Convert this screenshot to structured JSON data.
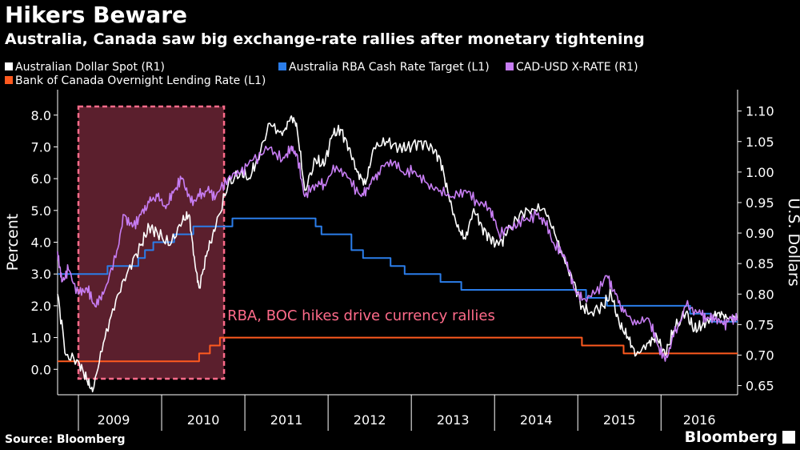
{
  "header": {
    "title": "Hikers Beware",
    "subtitle": "Australia, Canada saw big exchange-rate rallies after monetary tightening"
  },
  "footer": {
    "source": "Source: Bloomberg",
    "brand": "Bloomberg"
  },
  "colors": {
    "aud": "#ffffff",
    "rba": "#2b7de9",
    "cad": "#c77df3",
    "boc": "#ff5a1f",
    "highlight_fill": "#7a2a3c",
    "highlight_border": "#ff6b8a",
    "annotation": "#ff6b8a",
    "axis": "#ffffff",
    "grid": "#555555"
  },
  "chart_data": {
    "type": "line",
    "title": "Hikers Beware",
    "subtitle": "Australia, Canada saw big exchange-rate rallies after monetary tightening",
    "left_axis": {
      "label": "Percent",
      "range": [
        -0.8,
        8.8
      ],
      "ticks": [
        "0.0",
        "1.0",
        "2.0",
        "3.0",
        "4.0",
        "5.0",
        "6.0",
        "7.0",
        "8.0"
      ]
    },
    "right_axis": {
      "label": "U.S. Dollars",
      "range": [
        0.635,
        1.135
      ],
      "ticks": [
        "0.65",
        "0.70",
        "0.75",
        "0.80",
        "0.85",
        "0.90",
        "0.95",
        "1.00",
        "1.05",
        "1.10"
      ]
    },
    "x_axis": {
      "range": [
        2008.75,
        2016.92
      ],
      "ticks": [
        "2009",
        "2010",
        "2011",
        "2012",
        "2013",
        "2014",
        "2015",
        "2016"
      ]
    },
    "legend_placement": "top",
    "grid": false,
    "series": [
      {
        "key": "aud",
        "name": "Australian Dollar Spot (R1)",
        "axis": "right",
        "points": [
          [
            2008.75,
            0.8
          ],
          [
            2008.85,
            0.7
          ],
          [
            2009.0,
            0.69
          ],
          [
            2009.1,
            0.66
          ],
          [
            2009.17,
            0.64
          ],
          [
            2009.3,
            0.72
          ],
          [
            2009.45,
            0.79
          ],
          [
            2009.6,
            0.84
          ],
          [
            2009.75,
            0.88
          ],
          [
            2009.85,
            0.91
          ],
          [
            2009.95,
            0.9
          ],
          [
            2010.1,
            0.88
          ],
          [
            2010.25,
            0.92
          ],
          [
            2010.33,
            0.93
          ],
          [
            2010.4,
            0.85
          ],
          [
            2010.45,
            0.81
          ],
          [
            2010.55,
            0.87
          ],
          [
            2010.65,
            0.91
          ],
          [
            2010.8,
            0.98
          ],
          [
            2010.95,
            1.0
          ],
          [
            2011.05,
            0.99
          ],
          [
            2011.15,
            1.02
          ],
          [
            2011.3,
            1.08
          ],
          [
            2011.45,
            1.06
          ],
          [
            2011.55,
            1.09
          ],
          [
            2011.62,
            1.08
          ],
          [
            2011.72,
            0.97
          ],
          [
            2011.85,
            1.02
          ],
          [
            2011.95,
            1.01
          ],
          [
            2012.05,
            1.06
          ],
          [
            2012.15,
            1.07
          ],
          [
            2012.25,
            1.04
          ],
          [
            2012.35,
            1.0
          ],
          [
            2012.45,
            0.98
          ],
          [
            2012.55,
            1.04
          ],
          [
            2012.7,
            1.05
          ],
          [
            2012.85,
            1.04
          ],
          [
            2012.95,
            1.04
          ],
          [
            2013.1,
            1.05
          ],
          [
            2013.25,
            1.04
          ],
          [
            2013.35,
            1.02
          ],
          [
            2013.45,
            0.96
          ],
          [
            2013.55,
            0.91
          ],
          [
            2013.65,
            0.89
          ],
          [
            2013.75,
            0.94
          ],
          [
            2013.85,
            0.91
          ],
          [
            2013.95,
            0.89
          ],
          [
            2014.05,
            0.88
          ],
          [
            2014.15,
            0.9
          ],
          [
            2014.3,
            0.93
          ],
          [
            2014.45,
            0.94
          ],
          [
            2014.6,
            0.94
          ],
          [
            2014.72,
            0.9
          ],
          [
            2014.85,
            0.85
          ],
          [
            2014.95,
            0.82
          ],
          [
            2015.05,
            0.78
          ],
          [
            2015.15,
            0.77
          ],
          [
            2015.3,
            0.78
          ],
          [
            2015.4,
            0.8
          ],
          [
            2015.5,
            0.75
          ],
          [
            2015.6,
            0.73
          ],
          [
            2015.7,
            0.7
          ],
          [
            2015.85,
            0.72
          ],
          [
            2015.95,
            0.73
          ],
          [
            2016.05,
            0.7
          ],
          [
            2016.15,
            0.74
          ],
          [
            2016.3,
            0.77
          ],
          [
            2016.4,
            0.74
          ],
          [
            2016.5,
            0.75
          ],
          [
            2016.6,
            0.76
          ],
          [
            2016.7,
            0.77
          ],
          [
            2016.8,
            0.76
          ],
          [
            2016.92,
            0.76
          ]
        ]
      },
      {
        "key": "rba",
        "name": "Australia RBA Cash Rate Target (L1)",
        "axis": "left",
        "points": [
          [
            2008.75,
            3.0
          ],
          [
            2009.35,
            3.0
          ],
          [
            2009.35,
            3.25
          ],
          [
            2009.72,
            3.25
          ],
          [
            2009.72,
            3.5
          ],
          [
            2009.8,
            3.5
          ],
          [
            2009.8,
            3.75
          ],
          [
            2009.9,
            3.75
          ],
          [
            2009.9,
            4.0
          ],
          [
            2010.15,
            4.0
          ],
          [
            2010.15,
            4.25
          ],
          [
            2010.38,
            4.25
          ],
          [
            2010.38,
            4.5
          ],
          [
            2010.85,
            4.5
          ],
          [
            2010.85,
            4.75
          ],
          [
            2011.85,
            4.75
          ],
          [
            2011.85,
            4.5
          ],
          [
            2011.92,
            4.5
          ],
          [
            2011.92,
            4.25
          ],
          [
            2012.28,
            4.25
          ],
          [
            2012.28,
            3.75
          ],
          [
            2012.42,
            3.75
          ],
          [
            2012.42,
            3.5
          ],
          [
            2012.75,
            3.5
          ],
          [
            2012.75,
            3.25
          ],
          [
            2012.92,
            3.25
          ],
          [
            2012.92,
            3.0
          ],
          [
            2013.35,
            3.0
          ],
          [
            2013.35,
            2.75
          ],
          [
            2013.6,
            2.75
          ],
          [
            2013.6,
            2.5
          ],
          [
            2015.1,
            2.5
          ],
          [
            2015.1,
            2.25
          ],
          [
            2015.35,
            2.25
          ],
          [
            2015.35,
            2.0
          ],
          [
            2016.35,
            2.0
          ],
          [
            2016.35,
            1.75
          ],
          [
            2016.6,
            1.75
          ],
          [
            2016.6,
            1.5
          ],
          [
            2016.92,
            1.5
          ]
        ]
      },
      {
        "key": "cad",
        "name": "CAD-USD X-RATE (R1)",
        "axis": "right",
        "points": [
          [
            2008.75,
            0.87
          ],
          [
            2008.8,
            0.82
          ],
          [
            2008.88,
            0.84
          ],
          [
            2009.0,
            0.8
          ],
          [
            2009.1,
            0.81
          ],
          [
            2009.2,
            0.78
          ],
          [
            2009.3,
            0.8
          ],
          [
            2009.45,
            0.86
          ],
          [
            2009.55,
            0.93
          ],
          [
            2009.65,
            0.91
          ],
          [
            2009.75,
            0.93
          ],
          [
            2009.85,
            0.95
          ],
          [
            2009.95,
            0.96
          ],
          [
            2010.05,
            0.94
          ],
          [
            2010.15,
            0.97
          ],
          [
            2010.25,
            0.99
          ],
          [
            2010.35,
            0.95
          ],
          [
            2010.45,
            0.96
          ],
          [
            2010.55,
            0.97
          ],
          [
            2010.65,
            0.96
          ],
          [
            2010.8,
            0.99
          ],
          [
            2010.95,
            1.0
          ],
          [
            2011.1,
            1.02
          ],
          [
            2011.3,
            1.04
          ],
          [
            2011.45,
            1.02
          ],
          [
            2011.55,
            1.04
          ],
          [
            2011.62,
            1.03
          ],
          [
            2011.72,
            0.96
          ],
          [
            2011.85,
            0.98
          ],
          [
            2011.95,
            0.98
          ],
          [
            2012.1,
            1.01
          ],
          [
            2012.25,
            0.99
          ],
          [
            2012.4,
            0.96
          ],
          [
            2012.5,
            0.98
          ],
          [
            2012.6,
            1.0
          ],
          [
            2012.75,
            1.02
          ],
          [
            2012.9,
            1.0
          ],
          [
            2013.05,
            1.0
          ],
          [
            2013.2,
            0.98
          ],
          [
            2013.35,
            0.97
          ],
          [
            2013.5,
            0.96
          ],
          [
            2013.65,
            0.97
          ],
          [
            2013.8,
            0.95
          ],
          [
            2013.95,
            0.94
          ],
          [
            2014.05,
            0.9
          ],
          [
            2014.2,
            0.91
          ],
          [
            2014.35,
            0.92
          ],
          [
            2014.5,
            0.93
          ],
          [
            2014.6,
            0.92
          ],
          [
            2014.72,
            0.88
          ],
          [
            2014.85,
            0.86
          ],
          [
            2014.95,
            0.81
          ],
          [
            2015.05,
            0.79
          ],
          [
            2015.2,
            0.8
          ],
          [
            2015.35,
            0.83
          ],
          [
            2015.45,
            0.8
          ],
          [
            2015.55,
            0.77
          ],
          [
            2015.7,
            0.75
          ],
          [
            2015.85,
            0.76
          ],
          [
            2015.95,
            0.72
          ],
          [
            2016.05,
            0.69
          ],
          [
            2016.15,
            0.73
          ],
          [
            2016.3,
            0.78
          ],
          [
            2016.45,
            0.77
          ],
          [
            2016.55,
            0.76
          ],
          [
            2016.65,
            0.76
          ],
          [
            2016.75,
            0.75
          ],
          [
            2016.85,
            0.76
          ],
          [
            2016.92,
            0.76
          ]
        ]
      },
      {
        "key": "boc",
        "name": "Bank of Canada Overnight Lending Rate (L1)",
        "axis": "left",
        "points": [
          [
            2008.75,
            0.25
          ],
          [
            2010.45,
            0.25
          ],
          [
            2010.45,
            0.5
          ],
          [
            2010.58,
            0.5
          ],
          [
            2010.58,
            0.75
          ],
          [
            2010.7,
            0.75
          ],
          [
            2010.7,
            1.0
          ],
          [
            2015.05,
            1.0
          ],
          [
            2015.05,
            0.75
          ],
          [
            2015.55,
            0.75
          ],
          [
            2015.55,
            0.5
          ],
          [
            2016.92,
            0.5
          ]
        ]
      }
    ],
    "annotation": {
      "text": "RBA, BOC hikes drive currency rallies",
      "highlight_range": [
        2009.0,
        2010.75
      ]
    }
  }
}
